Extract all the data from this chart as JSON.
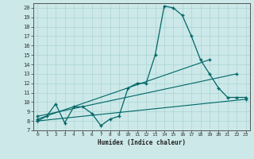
{
  "bg_color": "#cce8e8",
  "grid_color": "#aad4d4",
  "line_color": "#006666",
  "xlabel": "Humidex (Indice chaleur)",
  "xlim": [
    -0.5,
    23.5
  ],
  "ylim": [
    7,
    20.5
  ],
  "yticks": [
    7,
    8,
    9,
    10,
    11,
    12,
    13,
    14,
    15,
    16,
    17,
    18,
    19,
    20
  ],
  "xticks": [
    0,
    1,
    2,
    3,
    4,
    5,
    6,
    7,
    8,
    9,
    10,
    11,
    12,
    13,
    14,
    15,
    16,
    17,
    18,
    19,
    20,
    21,
    22,
    23
  ],
  "line1_x": [
    0,
    1,
    2,
    3,
    4,
    5,
    6,
    7,
    8,
    9,
    10,
    11,
    12,
    13,
    14,
    15,
    16,
    17,
    18,
    19,
    20,
    21,
    22,
    23
  ],
  "line1_y": [
    8.0,
    8.5,
    9.8,
    7.8,
    9.5,
    9.5,
    8.8,
    7.5,
    8.2,
    8.5,
    11.5,
    12.0,
    12.0,
    15.0,
    20.2,
    20.0,
    19.2,
    17.0,
    14.5,
    13.0,
    11.5,
    10.5,
    10.5,
    10.5
  ],
  "line2_x": [
    0,
    19
  ],
  "line2_y": [
    8.2,
    14.5
  ],
  "line3_x": [
    0,
    22
  ],
  "line3_y": [
    8.5,
    13.0
  ],
  "line4_x": [
    0,
    23
  ],
  "line4_y": [
    8.0,
    10.3
  ]
}
